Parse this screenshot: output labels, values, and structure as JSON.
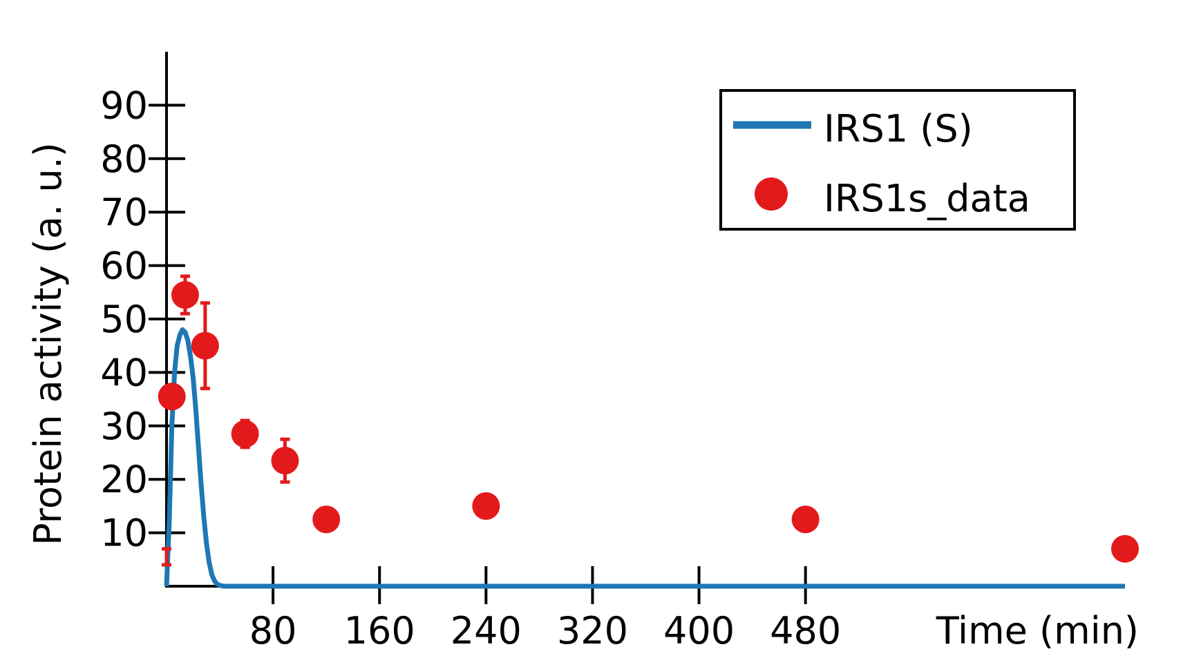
{
  "chart_data": {
    "type": "line",
    "title": "",
    "xlabel": "Time (min)",
    "ylabel": "Protein activity (a. u.)",
    "xlim": [
      0,
      720
    ],
    "ylim": [
      0,
      100
    ],
    "x_ticks": [
      80,
      160,
      240,
      320,
      400,
      480
    ],
    "y_ticks": [
      10,
      20,
      30,
      40,
      50,
      60,
      70,
      80,
      90
    ],
    "grid": false,
    "legend_position": "top-right",
    "series": [
      {
        "name": "IRS1 (S)",
        "kind": "line",
        "color": "#1f77b4",
        "x": [
          0,
          2,
          4,
          6,
          8,
          10,
          12,
          14,
          16,
          18,
          20,
          22,
          24,
          26,
          28,
          30,
          32,
          34,
          36,
          38,
          40,
          42,
          44,
          46,
          48,
          50,
          60,
          80,
          120,
          240,
          480,
          720
        ],
        "y": [
          0,
          12,
          30,
          40,
          45,
          47,
          48,
          47.5,
          46,
          43,
          39,
          33,
          26,
          19,
          13,
          8,
          4.5,
          2.2,
          1.0,
          0.4,
          0.15,
          0.05,
          0,
          0,
          0,
          0,
          0,
          0,
          0,
          0,
          0,
          0
        ]
      },
      {
        "name": "IRS1s_data",
        "kind": "scatter",
        "color": "#e31a1c",
        "x": [
          0,
          4,
          14,
          29,
          59,
          89,
          120,
          240,
          480,
          720
        ],
        "y": [
          5.5,
          35.5,
          54.5,
          45,
          28.5,
          23.5,
          12.5,
          15,
          12.5,
          7
        ],
        "error": [
          1.5,
          0,
          3.5,
          8,
          2.5,
          4,
          0,
          0,
          0,
          0
        ]
      }
    ]
  }
}
